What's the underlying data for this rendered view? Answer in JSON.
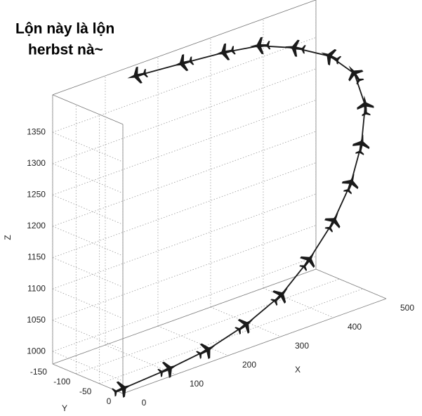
{
  "chart_data": {
    "type": "line3d",
    "annotations": [
      "Lộn này là lộn",
      "herbst nà~"
    ],
    "xlabel": "X",
    "ylabel": "Y",
    "zlabel": "Z",
    "x": [
      0,
      87,
      160,
      233,
      300,
      353,
      400,
      433,
      453,
      469,
      462,
      429,
      380,
      331,
      282,
      225,
      160
    ],
    "y": [
      0,
      0,
      0,
      0,
      0,
      0,
      0,
      0,
      0,
      -10,
      -25,
      -40,
      -60,
      -80,
      -100,
      -125,
      -150
    ],
    "z": [
      988,
      993,
      1001,
      1019,
      1046,
      1086,
      1134,
      1185,
      1241,
      1295,
      1343,
      1376,
      1398,
      1410,
      1408,
      1400,
      1392
    ],
    "color": "#1a1a1a",
    "xlim": [
      0,
      500
    ],
    "ylim": [
      -150,
      0
    ],
    "zlim": [
      980,
      1410
    ],
    "xticks": [
      0,
      100,
      200,
      300,
      400,
      500
    ],
    "yticks": [
      -150,
      -100,
      -50,
      0
    ],
    "zticks": [
      1000,
      1050,
      1100,
      1150,
      1200,
      1250,
      1300,
      1350
    ],
    "grid": true
  }
}
